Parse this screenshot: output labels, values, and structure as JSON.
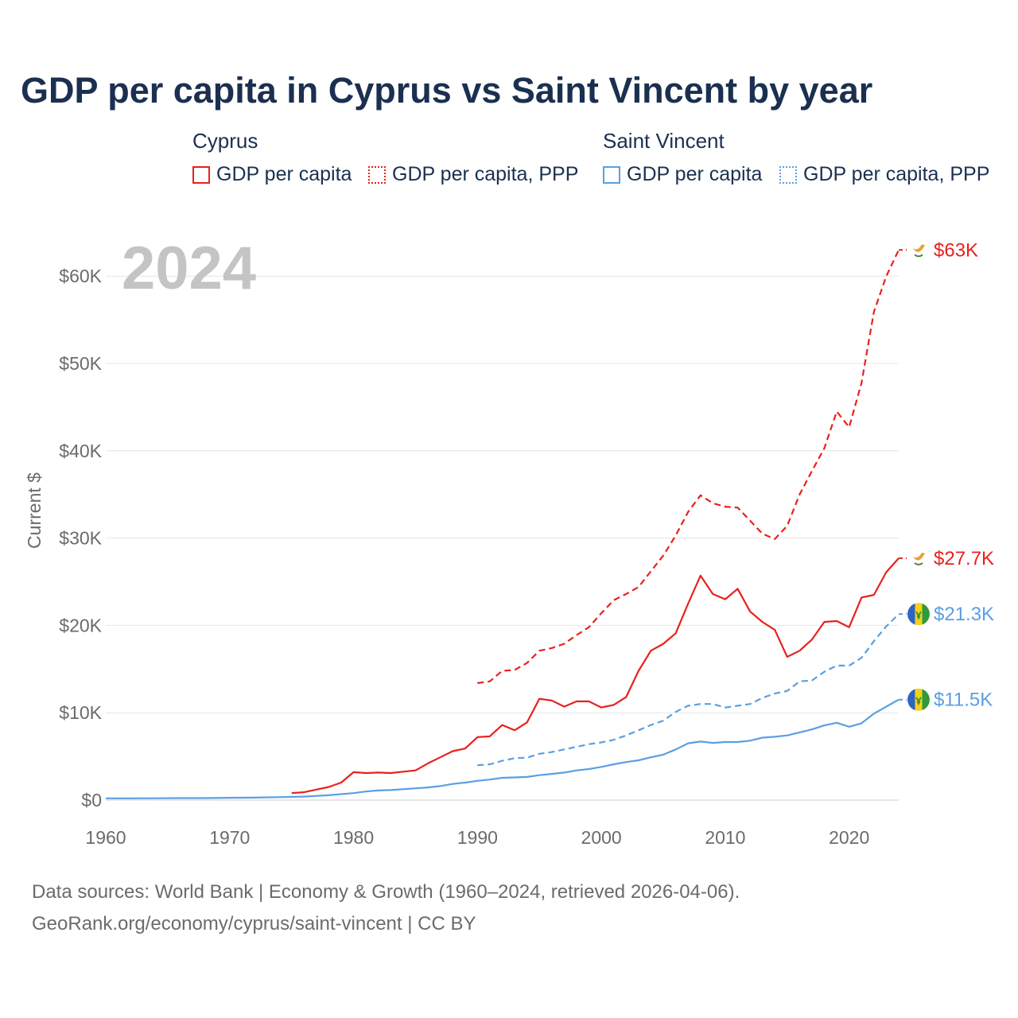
{
  "title": "GDP per capita in Cyprus vs Saint Vincent by year",
  "year_watermark": "2024",
  "legend": {
    "groups": [
      {
        "name": "Cyprus",
        "items": [
          {
            "label": "GDP per capita",
            "color": "#e8211d",
            "style": "solid"
          },
          {
            "label": "GDP per capita, PPP",
            "color": "#e8211d",
            "style": "dotted"
          }
        ]
      },
      {
        "name": "Saint Vincent",
        "items": [
          {
            "label": "GDP per capita",
            "color": "#5b9fe3",
            "style": "solid"
          },
          {
            "label": "GDP per capita, PPP",
            "color": "#5b9fe3",
            "style": "dotted"
          }
        ]
      }
    ]
  },
  "footer": {
    "line1": "Data sources: World Bank | Economy & Growth (1960–2024, retrieved 2026-04-06).",
    "line2": "GeoRank.org/economy/cyprus/saint-vincent | CC BY"
  },
  "chart_data": {
    "type": "line",
    "title": "GDP per capita in Cyprus vs Saint Vincent by year",
    "xlabel": "",
    "ylabel": "Current $",
    "xlim": [
      1960,
      2024
    ],
    "ylim": [
      0,
      63000
    ],
    "x_ticks": [
      1960,
      1970,
      1980,
      1990,
      2000,
      2010,
      2020
    ],
    "y_ticks": [
      0,
      10000,
      20000,
      30000,
      40000,
      50000,
      60000
    ],
    "y_tick_labels": [
      "$0",
      "$10K",
      "$20K",
      "$30K",
      "$40K",
      "$50K",
      "$60K"
    ],
    "grid": true,
    "series": [
      {
        "name": "Cyprus GDP per capita, PPP",
        "color": "#e8211d",
        "dash": true,
        "end_label": "$63K",
        "points": [
          [
            1990,
            13400
          ],
          [
            1991,
            13600
          ],
          [
            1992,
            14800
          ],
          [
            1993,
            14900
          ],
          [
            1994,
            15700
          ],
          [
            1995,
            17100
          ],
          [
            1996,
            17400
          ],
          [
            1997,
            17900
          ],
          [
            1998,
            18900
          ],
          [
            1999,
            19800
          ],
          [
            2000,
            21400
          ],
          [
            2001,
            22900
          ],
          [
            2002,
            23600
          ],
          [
            2003,
            24400
          ],
          [
            2004,
            26200
          ],
          [
            2005,
            28000
          ],
          [
            2006,
            30300
          ],
          [
            2007,
            33000
          ],
          [
            2008,
            34900
          ],
          [
            2009,
            34000
          ],
          [
            2010,
            33600
          ],
          [
            2011,
            33500
          ],
          [
            2012,
            32000
          ],
          [
            2013,
            30500
          ],
          [
            2014,
            29900
          ],
          [
            2015,
            31400
          ],
          [
            2016,
            35000
          ],
          [
            2017,
            37700
          ],
          [
            2018,
            40300
          ],
          [
            2019,
            44500
          ],
          [
            2020,
            42700
          ],
          [
            2021,
            47800
          ],
          [
            2022,
            55900
          ],
          [
            2023,
            60000
          ],
          [
            2024,
            63000
          ]
        ]
      },
      {
        "name": "Cyprus GDP per capita",
        "color": "#e8211d",
        "dash": false,
        "end_label": "$27.7K",
        "points": [
          [
            1975,
            800
          ],
          [
            1976,
            900
          ],
          [
            1977,
            1200
          ],
          [
            1978,
            1500
          ],
          [
            1979,
            2000
          ],
          [
            1980,
            3200
          ],
          [
            1981,
            3100
          ],
          [
            1982,
            3150
          ],
          [
            1983,
            3100
          ],
          [
            1984,
            3250
          ],
          [
            1985,
            3400
          ],
          [
            1986,
            4200
          ],
          [
            1987,
            4900
          ],
          [
            1988,
            5600
          ],
          [
            1989,
            5900
          ],
          [
            1990,
            7200
          ],
          [
            1991,
            7300
          ],
          [
            1992,
            8600
          ],
          [
            1993,
            8000
          ],
          [
            1994,
            8900
          ],
          [
            1995,
            11600
          ],
          [
            1996,
            11400
          ],
          [
            1997,
            10700
          ],
          [
            1998,
            11300
          ],
          [
            1999,
            11300
          ],
          [
            2000,
            10600
          ],
          [
            2001,
            10900
          ],
          [
            2002,
            11800
          ],
          [
            2003,
            14800
          ],
          [
            2004,
            17100
          ],
          [
            2005,
            17900
          ],
          [
            2006,
            19100
          ],
          [
            2007,
            22500
          ],
          [
            2008,
            25700
          ],
          [
            2009,
            23600
          ],
          [
            2010,
            23000
          ],
          [
            2011,
            24200
          ],
          [
            2012,
            21600
          ],
          [
            2013,
            20400
          ],
          [
            2014,
            19500
          ],
          [
            2015,
            16400
          ],
          [
            2016,
            17100
          ],
          [
            2017,
            18400
          ],
          [
            2018,
            20400
          ],
          [
            2019,
            20500
          ],
          [
            2020,
            19800
          ],
          [
            2021,
            23200
          ],
          [
            2022,
            23500
          ],
          [
            2023,
            26100
          ],
          [
            2024,
            27700
          ]
        ]
      },
      {
        "name": "Saint Vincent GDP per capita, PPP",
        "color": "#5b9fe3",
        "dash": true,
        "end_label": "$21.3K",
        "points": [
          [
            1990,
            4000
          ],
          [
            1991,
            4100
          ],
          [
            1992,
            4500
          ],
          [
            1993,
            4800
          ],
          [
            1994,
            4850
          ],
          [
            1995,
            5300
          ],
          [
            1996,
            5500
          ],
          [
            1997,
            5800
          ],
          [
            1998,
            6100
          ],
          [
            1999,
            6400
          ],
          [
            2000,
            6600
          ],
          [
            2001,
            6900
          ],
          [
            2002,
            7400
          ],
          [
            2003,
            8000
          ],
          [
            2004,
            8600
          ],
          [
            2005,
            9100
          ],
          [
            2006,
            10100
          ],
          [
            2007,
            10800
          ],
          [
            2008,
            11000
          ],
          [
            2009,
            11000
          ],
          [
            2010,
            10600
          ],
          [
            2011,
            10800
          ],
          [
            2012,
            11000
          ],
          [
            2013,
            11700
          ],
          [
            2014,
            12200
          ],
          [
            2015,
            12500
          ],
          [
            2016,
            13600
          ],
          [
            2017,
            13700
          ],
          [
            2018,
            14700
          ],
          [
            2019,
            15400
          ],
          [
            2020,
            15400
          ],
          [
            2021,
            16300
          ],
          [
            2022,
            18200
          ],
          [
            2023,
            19900
          ],
          [
            2024,
            21300
          ]
        ]
      },
      {
        "name": "Saint Vincent GDP per capita",
        "color": "#5b9fe3",
        "dash": false,
        "end_label": "$11.5K",
        "points": [
          [
            1960,
            200
          ],
          [
            1962,
            200
          ],
          [
            1964,
            210
          ],
          [
            1966,
            230
          ],
          [
            1968,
            230
          ],
          [
            1970,
            260
          ],
          [
            1972,
            280
          ],
          [
            1974,
            340
          ],
          [
            1976,
            400
          ],
          [
            1978,
            560
          ],
          [
            1980,
            800
          ],
          [
            1981,
            980
          ],
          [
            1982,
            1100
          ],
          [
            1983,
            1150
          ],
          [
            1984,
            1250
          ],
          [
            1985,
            1350
          ],
          [
            1986,
            1450
          ],
          [
            1987,
            1600
          ],
          [
            1988,
            1850
          ],
          [
            1989,
            2000
          ],
          [
            1990,
            2200
          ],
          [
            1991,
            2350
          ],
          [
            1992,
            2550
          ],
          [
            1993,
            2600
          ],
          [
            1994,
            2650
          ],
          [
            1995,
            2850
          ],
          [
            1996,
            3000
          ],
          [
            1997,
            3150
          ],
          [
            1998,
            3400
          ],
          [
            1999,
            3550
          ],
          [
            2000,
            3800
          ],
          [
            2001,
            4100
          ],
          [
            2002,
            4350
          ],
          [
            2003,
            4550
          ],
          [
            2004,
            4900
          ],
          [
            2005,
            5200
          ],
          [
            2006,
            5800
          ],
          [
            2007,
            6500
          ],
          [
            2008,
            6700
          ],
          [
            2009,
            6550
          ],
          [
            2010,
            6650
          ],
          [
            2011,
            6650
          ],
          [
            2012,
            6800
          ],
          [
            2013,
            7150
          ],
          [
            2014,
            7250
          ],
          [
            2015,
            7400
          ],
          [
            2016,
            7750
          ],
          [
            2017,
            8100
          ],
          [
            2018,
            8550
          ],
          [
            2019,
            8850
          ],
          [
            2020,
            8400
          ],
          [
            2021,
            8800
          ],
          [
            2022,
            9900
          ],
          [
            2023,
            10700
          ],
          [
            2024,
            11500
          ]
        ]
      }
    ]
  }
}
